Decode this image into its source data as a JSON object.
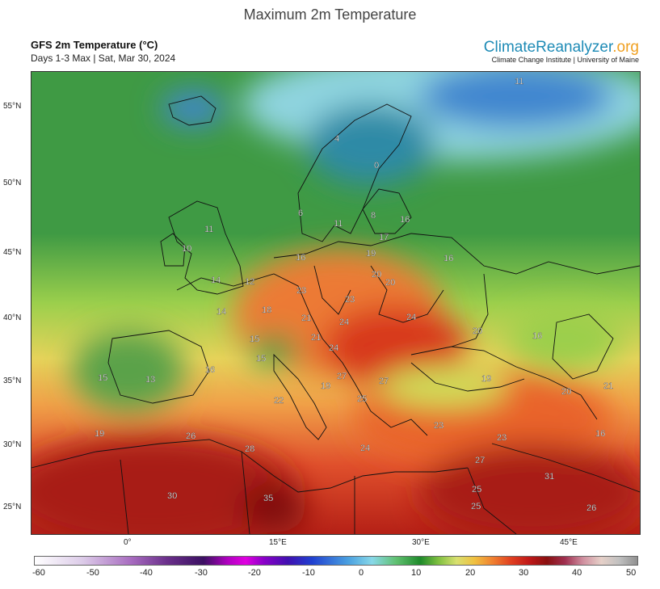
{
  "header": {
    "title": "Maximum 2m Temperature",
    "product": "GFS 2m Temperature (°C)",
    "period": "Days 1-3 Max | Sat, Mar 30, 2024",
    "brand_main": "ClimateReanalyzer",
    "brand_tld": ".org",
    "institution": "Climate Change Institute | University of Maine"
  },
  "axes": {
    "lat_labels": [
      "55°N",
      "50°N",
      "45°N",
      "40°N",
      "35°N",
      "30°N",
      "25°N"
    ],
    "lon_labels": [
      "0°",
      "15°E",
      "30°E",
      "45°E"
    ]
  },
  "colorbar": {
    "ticks": [
      "-60",
      "-50",
      "-40",
      "-30",
      "-20",
      "-10",
      "0",
      "10",
      "20",
      "30",
      "40",
      "50"
    ]
  },
  "map_labels": {
    "l1": "11",
    "l2": "4",
    "l3": "0",
    "l4": "6",
    "l5": "11",
    "l6": "8",
    "l7": "16",
    "l8": "11",
    "l9": "10",
    "l10": "14",
    "l11": "12",
    "l12": "16",
    "l13": "17",
    "l14": "19",
    "l15": "16",
    "l16": "20",
    "l17": "20",
    "l18": "23",
    "l19": "23",
    "l20": "14",
    "l21": "18",
    "l22": "21",
    "l23": "24",
    "l24": "24",
    "l25": "21",
    "l26": "15",
    "l27": "15",
    "l28": "24",
    "l29": "20",
    "l30": "16",
    "l31": "27",
    "l32": "27",
    "l33": "19",
    "l34": "15",
    "l35": "13",
    "l36": "16",
    "l37": "19",
    "l38": "25",
    "l39": "22",
    "l40": "21",
    "l41": "20",
    "l42": "23",
    "l43": "23",
    "l44": "16",
    "l45": "19",
    "l46": "26",
    "l47": "28",
    "l48": "24",
    "l49": "27",
    "l50": "31",
    "l51": "25",
    "l52": "30",
    "l53": "35",
    "l54": "25",
    "l55": "26"
  }
}
